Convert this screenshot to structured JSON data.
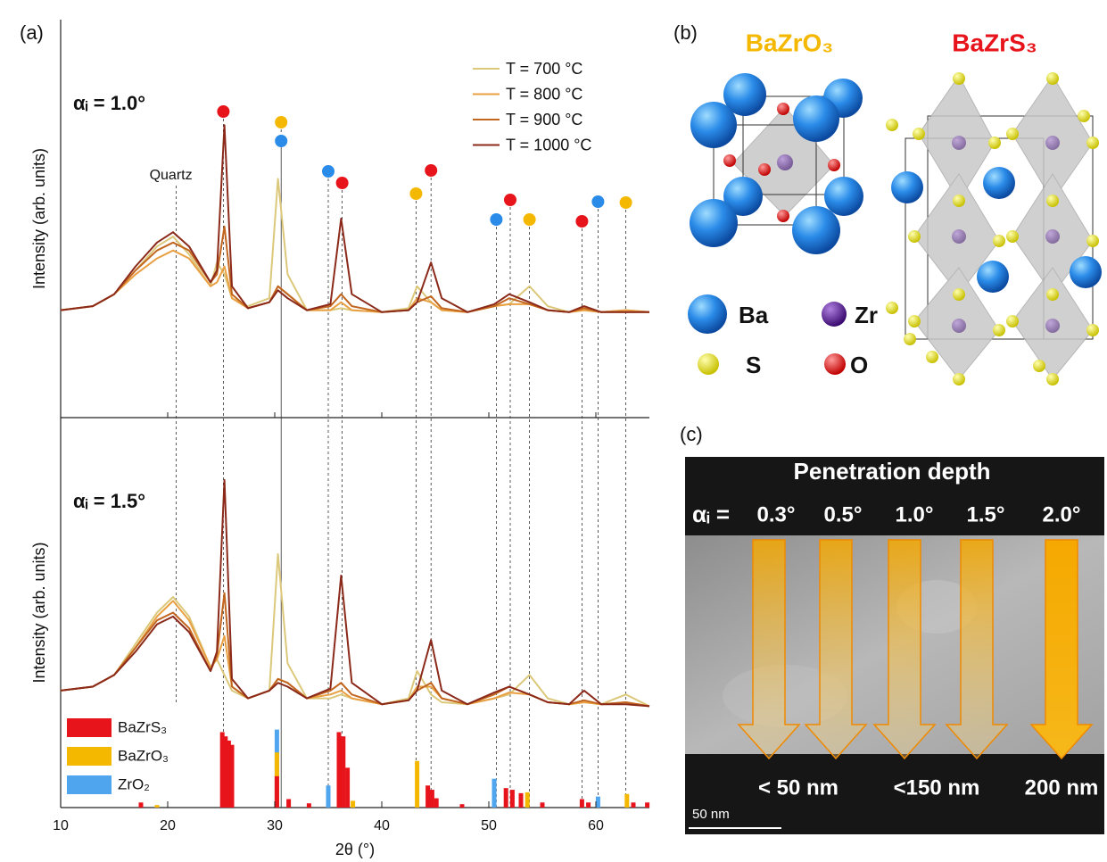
{
  "panel_labels": {
    "a": "(a)",
    "b": "(b)",
    "c": "(c)"
  },
  "chart_data": [
    {
      "type": "line",
      "ylabel": "Intensity (arb. units)",
      "annotation": "αᵢ = 1.0°",
      "x": [
        10,
        13,
        15,
        17,
        19,
        20.5,
        22,
        24,
        24.6,
        25.3,
        26,
        27.5,
        29.5,
        30.3,
        31.2,
        33,
        35.2,
        36.2,
        37.2,
        40,
        42.5,
        43.3,
        44.6,
        45.6,
        48,
        50.5,
        51.9,
        53.8,
        55.5,
        57.5,
        58.9,
        60.5,
        62.8,
        65
      ],
      "series": [
        {
          "name": "T = 700 °C",
          "color": "#dcc87a",
          "values": [
            27,
            28,
            31,
            37,
            43,
            45.5,
            41,
            33,
            39,
            36,
            30,
            28,
            30,
            60,
            36,
            27,
            27,
            27.5,
            27,
            26.5,
            27.5,
            33,
            29,
            27,
            26.5,
            28,
            28.5,
            33,
            28,
            26.5,
            27,
            26.5,
            27,
            26.5
          ]
        },
        {
          "name": "T = 800 °C",
          "color": "#e9a043",
          "values": [
            27,
            28,
            31,
            36,
            40,
            42,
            40,
            33,
            34,
            38,
            30,
            27.5,
            29,
            33,
            31,
            27,
            27,
            29,
            27,
            26.5,
            27,
            30,
            29,
            27,
            26.5,
            28,
            28.5,
            28.5,
            27,
            26.5,
            27,
            26.5,
            27,
            26.5
          ]
        },
        {
          "name": "T = 900 °C",
          "color": "#c2661f",
          "values": [
            27,
            28,
            31,
            37,
            42,
            44,
            42,
            34,
            36,
            48,
            31,
            27.5,
            29,
            33,
            31,
            27,
            28,
            31,
            28,
            26.5,
            27,
            29,
            30.5,
            27.5,
            26.5,
            28,
            30,
            28.5,
            27,
            26.5,
            27.5,
            26.5,
            26.5,
            26.5
          ]
        },
        {
          "name": "T = 1000 °C",
          "color": "#8b2a1a",
          "values": [
            27,
            28,
            31,
            38,
            44,
            46.6,
            43,
            34,
            37,
            73.5,
            33,
            27.5,
            29,
            32,
            30,
            27,
            28.5,
            50,
            31,
            26.5,
            27,
            29,
            39,
            30,
            26.5,
            28.5,
            31,
            29,
            27,
            26.5,
            28,
            26.5,
            26.5,
            26.5
          ]
        }
      ],
      "xlim": [
        10,
        65
      ],
      "ylim": [
        0,
        100
      ],
      "legend": "upper right",
      "quartz": {
        "text": "Quartz",
        "x": 20.8
      },
      "peak_markers": [
        {
          "color": "#e8141c",
          "x": [
            25.2,
            36.3,
            44.6,
            52.0,
            58.7
          ]
        },
        {
          "color": "#f5b800",
          "x": [
            30.6,
            43.2,
            53.8,
            62.8
          ]
        },
        {
          "color": "#2a8be8",
          "x": [
            30.6,
            35.0,
            50.7,
            60.2
          ]
        }
      ]
    },
    {
      "type": "line",
      "ylabel": "Intensity (arb. units)",
      "annotation": "αᵢ = 1.5°",
      "x": [
        10,
        13,
        15,
        17,
        19,
        20.5,
        22,
        24,
        24.6,
        25.3,
        26,
        27.5,
        29.5,
        30.3,
        31.2,
        33,
        35.2,
        36.2,
        37.2,
        40,
        42.5,
        43.3,
        44.6,
        45.6,
        48,
        50.5,
        51.9,
        53.8,
        55.5,
        57.5,
        58.9,
        60.5,
        62.8,
        65
      ],
      "series": [
        {
          "color": "#dcc87a",
          "values": [
            30,
            31,
            34,
            42,
            50,
            54,
            49,
            36,
            38,
            34,
            30,
            28,
            30,
            65,
            37,
            28,
            28,
            29,
            28,
            26.5,
            28,
            35,
            29,
            27,
            26.5,
            28,
            29,
            34,
            28,
            26.5,
            27,
            26.5,
            29,
            26
          ]
        },
        {
          "color": "#e9a043",
          "values": [
            30,
            31,
            34,
            41,
            49,
            53,
            48,
            36,
            38,
            44,
            31,
            28,
            30,
            33,
            32,
            28,
            29,
            30,
            28,
            26.5,
            27.5,
            31,
            31,
            28,
            26.5,
            28,
            29.5,
            29,
            27,
            26.5,
            27,
            26.5,
            27,
            26
          ]
        },
        {
          "color": "#c2661f",
          "values": [
            30,
            31,
            34,
            41,
            48,
            50,
            46,
            35,
            39,
            55,
            31,
            28,
            30,
            33,
            32,
            28,
            30,
            32,
            29,
            26.5,
            27.5,
            30,
            32,
            28,
            26.5,
            29,
            31,
            29,
            27,
            26.5,
            27.5,
            26.5,
            27,
            26
          ]
        },
        {
          "color": "#8b2a1a",
          "values": [
            30,
            31,
            34,
            40,
            47,
            49,
            45,
            35,
            40,
            84,
            33,
            28,
            30,
            32,
            31,
            28,
            30.5,
            59.5,
            32,
            26.5,
            27.5,
            30,
            43,
            30,
            26.5,
            29.5,
            31,
            29,
            27,
            26.5,
            30,
            26.5,
            26.5,
            26
          ]
        }
      ],
      "xlim": [
        10,
        65
      ],
      "ylim": [
        0,
        100
      ]
    },
    {
      "type": "bar",
      "xlabel": "2θ (°)",
      "xlim": [
        10,
        65
      ],
      "xticks": [
        10,
        20,
        30,
        40,
        50,
        60
      ],
      "ylim": [
        0,
        100
      ],
      "legend": "upper left",
      "series": [
        {
          "name": "BaZrS₃",
          "color": "#e8141c",
          "x": [
            17.5,
            25.1,
            25.4,
            25.7,
            26.0,
            30.2,
            31.3,
            33.2,
            36.0,
            36.4,
            36.8,
            44.3,
            44.7,
            45.1,
            47.5,
            51.6,
            52.2,
            53.0,
            55.0,
            58.7,
            59.3,
            63.5,
            64.8
          ],
          "values": [
            6,
            89,
            84,
            79,
            74,
            37,
            10,
            5,
            89,
            84,
            47,
            26,
            21,
            11,
            4,
            23,
            21,
            17,
            6,
            10,
            6,
            6,
            6
          ]
        },
        {
          "name": "BaZrO₃",
          "color": "#f5b800",
          "x": [
            19.0,
            30.2,
            37.3,
            43.3,
            53.6,
            62.9
          ],
          "values": [
            3,
            65,
            8,
            55,
            18,
            16
          ]
        },
        {
          "name": "ZrO₂",
          "color": "#4fa6ee",
          "x": [
            30.2,
            35.0,
            50.5,
            60.2
          ],
          "values": [
            92,
            26,
            34,
            13
          ]
        }
      ]
    }
  ],
  "structures": {
    "title_oxide": "BaZrO₃",
    "title_sulfide": "BaZrS₃",
    "legend": [
      "Ba",
      "Zr",
      "S",
      "O"
    ]
  },
  "tem": {
    "title": "Penetration depth",
    "alpha": "αᵢ =",
    "angles": [
      "0.3°",
      "0.5°",
      "1.0°",
      "1.5°",
      "2.0°"
    ],
    "depths": [
      "< 50 nm",
      "<150 nm",
      "200 nm"
    ],
    "scale_bar": "50 nm"
  }
}
